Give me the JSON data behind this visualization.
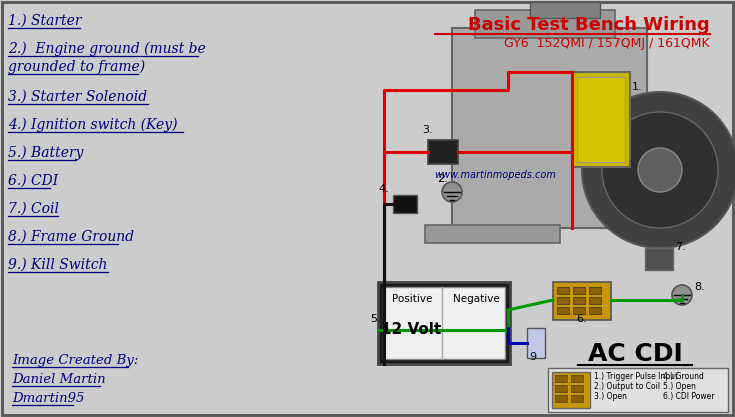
{
  "title": "Basic Test Bench Wiring",
  "subtitle": "GY6  152QMI / 157QMJ / 161QMK",
  "title_color": "#cc0000",
  "subtitle_color": "#cc0000",
  "bg_color": "#cccccc",
  "border_color": "#555555",
  "label_color": "#000080",
  "website": "www.martinmopeds.com",
  "website_color": "#000080",
  "credit_lines": [
    "Image Created By:",
    "Daniel Martin",
    "Dmartin95"
  ],
  "credit_color": "#000080",
  "ac_cdi_text": "AC CDI",
  "red": "#dd0000",
  "green": "#009900",
  "blue": "#0000bb",
  "black": "#111111",
  "label_positions": [
    [
      8,
      14,
      "1.) Starter"
    ],
    [
      8,
      42,
      "2.)  Engine ground (must be"
    ],
    [
      8,
      60,
      "grounded to frame)"
    ],
    [
      8,
      90,
      "3.) Starter Solenoid"
    ],
    [
      8,
      118,
      "4.) Ignition switch (Key)"
    ],
    [
      8,
      146,
      "5.) Battery"
    ],
    [
      8,
      174,
      "6.) CDI"
    ],
    [
      8,
      202,
      "7.) Coil"
    ],
    [
      8,
      230,
      "8.) Frame Ground"
    ],
    [
      8,
      258,
      "9.) Kill Switch"
    ]
  ],
  "underline_lengths": [
    72,
    190,
    130,
    140,
    175,
    68,
    42,
    50,
    110,
    100
  ]
}
